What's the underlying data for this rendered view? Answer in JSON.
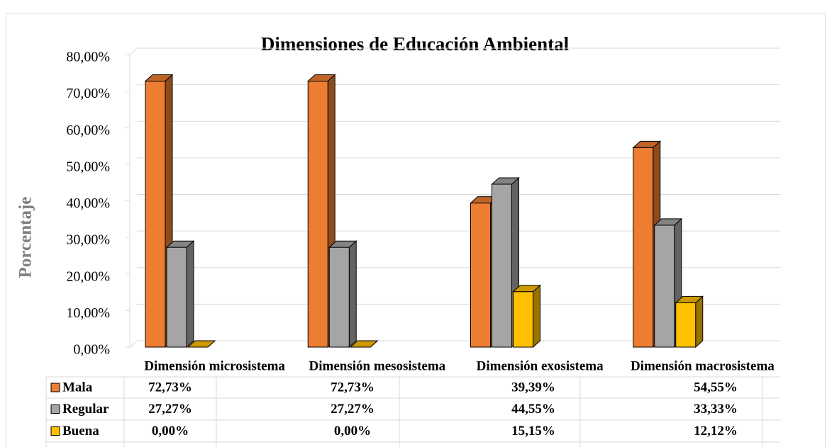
{
  "chart_data": {
    "type": "bar3d",
    "title": "Dimensiones de Educación Ambiental",
    "y_label": "Porcentaje",
    "categories": [
      "Dimensión microsistema",
      "Dimensión mesosistema",
      "Dimensión  exosistema",
      "Dimensión  macrosistema"
    ],
    "series": [
      {
        "name": "Mala",
        "color": "#ed7d31",
        "values": [
          72.73,
          72.73,
          39.39,
          54.55
        ],
        "value_labels": [
          "72,73%",
          "72,73%",
          "39,39%",
          "54,55%"
        ]
      },
      {
        "name": "Regular",
        "color": "#a5a5a5",
        "values": [
          27.27,
          27.27,
          44.55,
          33.33
        ],
        "value_labels": [
          "27,27%",
          "27,27%",
          "44,55%",
          "33,33%"
        ]
      },
      {
        "name": "Buena",
        "color": "#ffc000",
        "values": [
          0,
          0,
          15.15,
          12.12
        ],
        "value_labels": [
          "0,00%",
          "0,00%",
          "15,15%",
          "12,12%"
        ]
      }
    ],
    "ylim": [
      0,
      80
    ],
    "yticks": [
      {
        "value": 0,
        "label": "0,00%"
      },
      {
        "value": 10,
        "label": "10,00%"
      },
      {
        "value": 20,
        "label": "20,00%"
      },
      {
        "value": 30,
        "label": "30,00%"
      },
      {
        "value": 40,
        "label": "40,00%"
      },
      {
        "value": 50,
        "label": "50,00%"
      },
      {
        "value": 60,
        "label": "60,00%"
      },
      {
        "value": 70,
        "label": "70,00%"
      },
      {
        "value": 80,
        "label": "80,00%"
      }
    ],
    "grid": true
  }
}
